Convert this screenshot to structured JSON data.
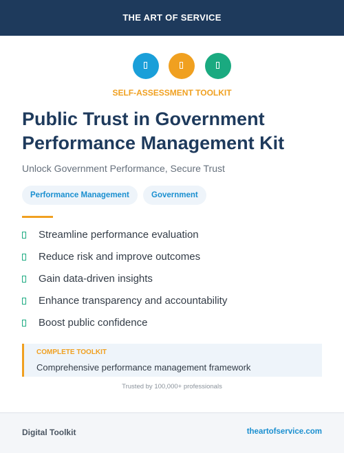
{
  "header": {
    "brand": "THE ART OF SERVICE"
  },
  "badge": "SELF-ASSESSMENT TOOLKIT",
  "title_lines": [
    "Public Trust in Government",
    "Performance Management Kit"
  ],
  "subtitle": "Unlock Government Performance, Secure Trust",
  "tags": [
    "Performance Management",
    "Government"
  ],
  "features": [
    "Streamline performance evaluation",
    "Reduce risk and improve outcomes",
    "Gain data-driven insights",
    "Enhance transparency and accountability",
    "Boost public confidence"
  ],
  "callout": {
    "label": "COMPLETE TOOLKIT",
    "text": "Comprehensive performance management framework"
  },
  "trust": "Trusted by 100,000+ professionals",
  "footer": {
    "left": "Digital Toolkit",
    "right": "theartofservice.com"
  }
}
